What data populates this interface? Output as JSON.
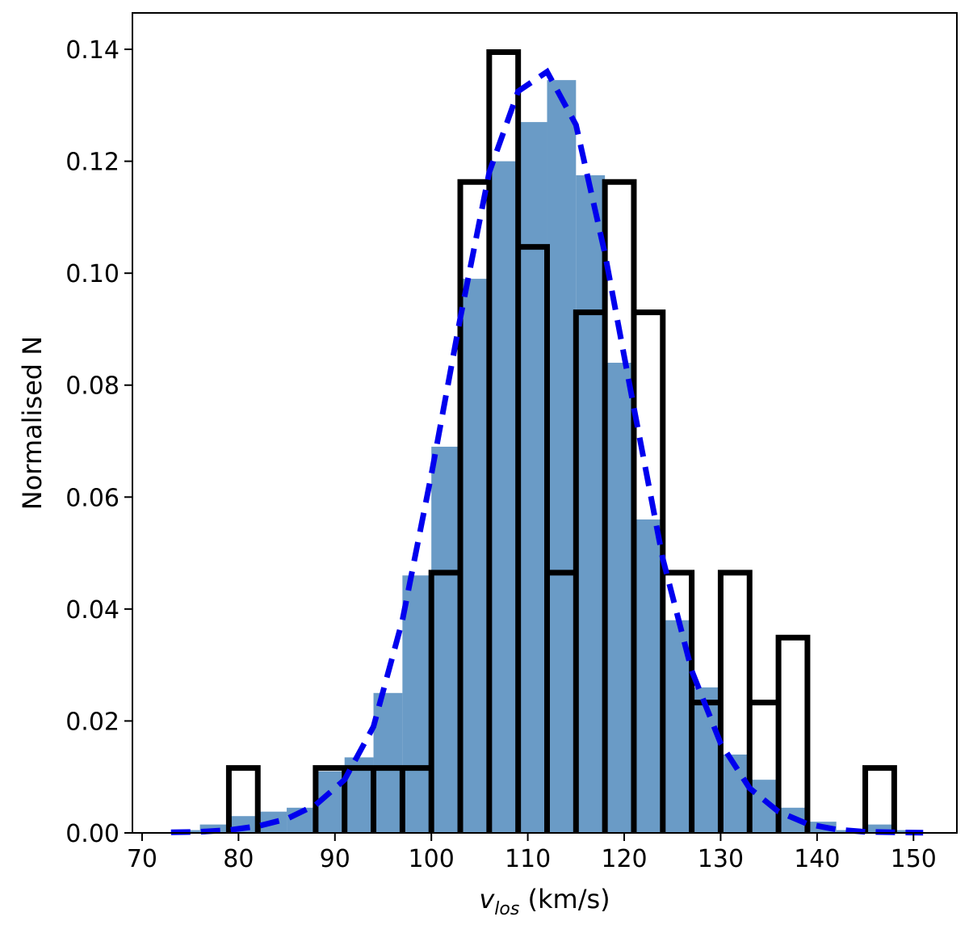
{
  "chart_data": {
    "type": "bar",
    "xlabel_var": "v",
    "xlabel_sub": "los",
    "xlabel_unit": " (km/s)",
    "ylabel": "Normalised N",
    "xlim": [
      69,
      154.5
    ],
    "ylim": [
      0,
      0.1465
    ],
    "x_ticks": [
      70,
      80,
      90,
      100,
      110,
      120,
      130,
      140,
      150
    ],
    "y_ticks": [
      "0.00",
      "0.02",
      "0.04",
      "0.06",
      "0.08",
      "0.10",
      "0.12",
      "0.14"
    ],
    "grid": false,
    "filled_histogram": {
      "color": "#6a9bc6",
      "bin_edges": [
        73,
        76,
        79,
        82,
        85,
        88,
        91,
        94,
        97,
        100,
        103,
        106,
        109,
        112,
        115,
        118,
        121,
        124,
        127,
        130,
        133,
        136,
        139,
        142,
        145,
        148,
        151
      ],
      "values": [
        0.0005,
        0.0015,
        0.003,
        0.0038,
        0.0045,
        0.011,
        0.0135,
        0.025,
        0.046,
        0.069,
        0.099,
        0.12,
        0.127,
        0.1345,
        0.1175,
        0.084,
        0.056,
        0.038,
        0.026,
        0.014,
        0.0095,
        0.0045,
        0.002,
        0.0005,
        0.0015,
        0.0005
      ]
    },
    "step_histogram": {
      "color": "#000000",
      "bin_edges": [
        79,
        82,
        85,
        88,
        91,
        94,
        97,
        100,
        103,
        106,
        109,
        112,
        115,
        118,
        121,
        124,
        127,
        130,
        133,
        136,
        139,
        142,
        145,
        148
      ],
      "values": [
        0.0116,
        0,
        0,
        0.0116,
        0.0116,
        0.0116,
        0.0116,
        0.0465,
        0.1163,
        0.1395,
        0.1047,
        0.0465,
        0.093,
        0.1163,
        0.093,
        0.0465,
        0.0233,
        0.0465,
        0.0233,
        0.0349,
        0,
        0,
        0.0116
      ]
    },
    "fit_curve": {
      "color": "#0000ee",
      "style": "dashed",
      "x": [
        73,
        76,
        79,
        82,
        85,
        88,
        91,
        94,
        97,
        100,
        103,
        106,
        109,
        112,
        115,
        118,
        121,
        124,
        127,
        130,
        133,
        136,
        139,
        142,
        145,
        148,
        151
      ],
      "y": [
        0.0001,
        0.0002,
        0.0005,
        0.0012,
        0.0025,
        0.005,
        0.0095,
        0.019,
        0.038,
        0.064,
        0.092,
        0.118,
        0.1325,
        0.136,
        0.1265,
        0.1035,
        0.076,
        0.049,
        0.029,
        0.016,
        0.008,
        0.0038,
        0.0016,
        0.0006,
        0.0002,
        0.0001,
        3e-05
      ]
    }
  }
}
